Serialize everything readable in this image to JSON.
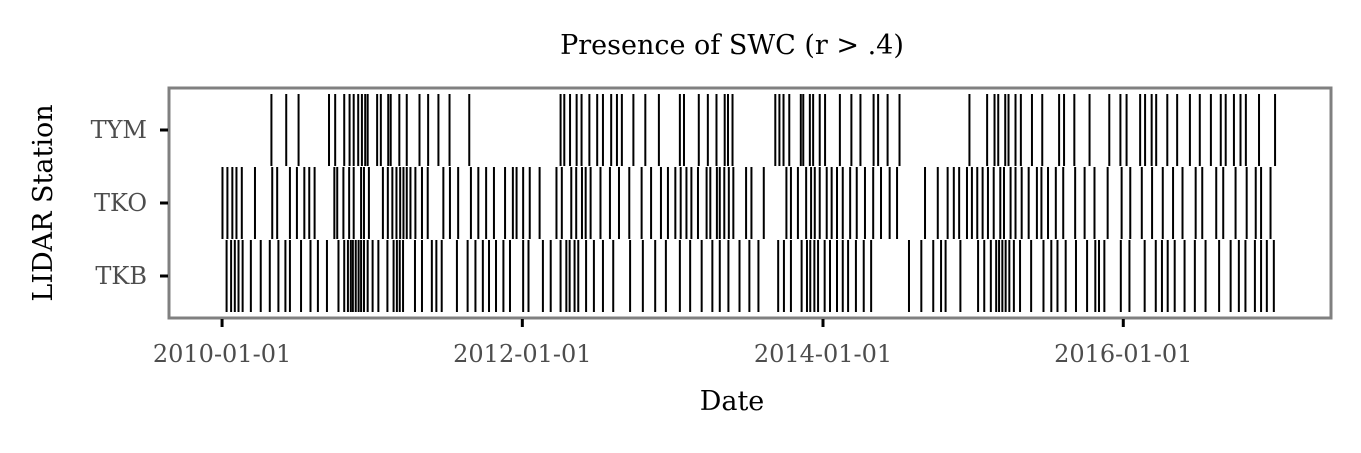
{
  "chart_data": {
    "type": "event-raster",
    "title": "Presence of SWC (r > .4)",
    "xlabel": "Date",
    "ylabel": "LIDAR Station",
    "xlim": [
      "2009-08-25",
      "2017-05-20"
    ],
    "x_ticks": [
      "2010-01-01",
      "2012-01-01",
      "2014-01-01",
      "2016-01-01"
    ],
    "categories": [
      "TKB",
      "TKO",
      "TYM"
    ],
    "grid": false,
    "legend": "none",
    "bar_color": "#000000",
    "frame_color": "#808080",
    "series": [
      {
        "name": "TYM",
        "dates": [
          "2010-05-01",
          "2010-06-06",
          "2010-07-06",
          "2010-09-18",
          "2010-10-03",
          "2010-10-25",
          "2010-11-07",
          "2010-11-17",
          "2010-11-28",
          "2010-12-07",
          "2010-12-15",
          "2010-12-21",
          "2011-01-13",
          "2011-01-22",
          "2011-02-09",
          "2011-02-15",
          "2011-03-08",
          "2011-03-26",
          "2011-04-26",
          "2011-05-17",
          "2011-06-11",
          "2011-07-08",
          "2011-08-25",
          "2012-04-03",
          "2012-04-12",
          "2012-04-26",
          "2012-05-12",
          "2012-05-24",
          "2012-06-12",
          "2012-07-01",
          "2012-07-15",
          "2012-08-04",
          "2012-08-18",
          "2012-08-30",
          "2012-09-27",
          "2012-10-26",
          "2012-11-28",
          "2013-01-18",
          "2013-01-28",
          "2013-03-05",
          "2013-03-27",
          "2013-04-17",
          "2013-05-07",
          "2013-05-15",
          "2013-05-26",
          "2013-09-07",
          "2013-09-17",
          "2013-09-27",
          "2013-10-11",
          "2013-11-08",
          "2013-11-14",
          "2013-11-30",
          "2013-12-08",
          "2013-12-24",
          "2014-01-06",
          "2014-02-11",
          "2014-03-11",
          "2014-04-02",
          "2014-05-04",
          "2014-05-15",
          "2014-06-07",
          "2014-07-06",
          "2014-12-23",
          "2015-02-04",
          "2015-02-22",
          "2015-03-03",
          "2015-03-20",
          "2015-03-28",
          "2015-04-14",
          "2015-04-27",
          "2015-05-24",
          "2015-06-18",
          "2015-07-29",
          "2015-08-10",
          "2015-09-04",
          "2015-10-11",
          "2015-11-28",
          "2015-12-25",
          "2016-01-09",
          "2016-02-11",
          "2016-02-23",
          "2016-03-10",
          "2016-03-21",
          "2016-04-17",
          "2016-05-11",
          "2016-06-11",
          "2016-07-05",
          "2016-08-01",
          "2016-08-25",
          "2016-09-06",
          "2016-09-26",
          "2016-10-12",
          "2016-10-25",
          "2016-11-26",
          "2017-01-04"
        ]
      },
      {
        "name": "TKO",
        "dates": [
          "2010-01-02",
          "2010-01-14",
          "2010-01-26",
          "2010-02-05",
          "2010-02-18",
          "2010-03-22",
          "2010-05-03",
          "2010-05-15",
          "2010-06-15",
          "2010-07-02",
          "2010-07-20",
          "2010-08-01",
          "2010-08-14",
          "2010-10-01",
          "2010-10-08",
          "2010-10-23",
          "2010-11-06",
          "2010-11-17",
          "2010-12-05",
          "2010-12-12",
          "2010-12-24",
          "2011-01-27",
          "2011-02-08",
          "2011-02-19",
          "2011-03-01",
          "2011-03-10",
          "2011-03-18",
          "2011-03-26",
          "2011-04-04",
          "2011-04-16",
          "2011-05-02",
          "2011-05-16",
          "2011-06-23",
          "2011-07-09",
          "2011-07-29",
          "2011-08-29",
          "2011-09-16",
          "2011-10-05",
          "2011-10-24",
          "2011-11-20",
          "2011-12-09",
          "2011-12-18",
          "2012-01-03",
          "2012-01-19",
          "2012-02-12",
          "2012-03-24",
          "2012-04-06",
          "2012-04-29",
          "2012-05-11",
          "2012-05-25",
          "2012-06-03",
          "2012-06-15",
          "2012-07-09",
          "2012-08-01",
          "2012-08-23",
          "2012-09-17",
          "2012-10-17",
          "2012-11-09",
          "2012-12-03",
          "2012-12-20",
          "2013-01-07",
          "2013-01-20",
          "2013-02-03",
          "2013-02-15",
          "2013-03-03",
          "2013-03-24",
          "2013-04-02",
          "2013-04-18",
          "2013-04-25",
          "2013-05-06",
          "2013-05-17",
          "2013-05-28",
          "2013-06-28",
          "2013-07-11",
          "2013-08-10",
          "2013-10-04",
          "2013-10-15",
          "2013-11-01",
          "2013-11-21",
          "2013-12-03",
          "2013-12-12",
          "2013-12-24",
          "2014-01-10",
          "2014-01-22",
          "2014-02-04",
          "2014-02-18",
          "2014-03-08",
          "2014-03-24",
          "2014-04-13",
          "2014-05-03",
          "2014-05-22",
          "2014-06-12",
          "2014-06-30",
          "2014-09-06",
          "2014-10-07",
          "2014-10-31",
          "2014-11-15",
          "2014-11-28",
          "2014-12-17",
          "2014-12-29",
          "2015-01-11",
          "2015-01-24",
          "2015-02-06",
          "2015-02-20",
          "2015-03-08",
          "2015-03-17",
          "2015-04-02",
          "2015-04-14",
          "2015-04-29",
          "2015-05-16",
          "2015-06-05",
          "2015-06-16",
          "2015-07-02",
          "2015-07-21",
          "2015-08-08",
          "2015-09-06",
          "2015-09-29",
          "2015-10-23",
          "2015-11-24",
          "2015-12-28",
          "2016-01-18",
          "2016-02-15",
          "2016-03-11",
          "2016-04-06",
          "2016-05-01",
          "2016-05-24",
          "2016-06-25",
          "2016-07-11",
          "2016-08-14",
          "2016-08-31",
          "2016-09-30",
          "2016-10-27",
          "2016-11-18",
          "2016-12-01",
          "2016-12-24"
        ]
      },
      {
        "name": "TKB",
        "dates": [
          "2010-01-12",
          "2010-01-23",
          "2010-02-01",
          "2010-02-10",
          "2010-02-20",
          "2010-03-12",
          "2010-04-05",
          "2010-04-27",
          "2010-05-18",
          "2010-06-04",
          "2010-06-15",
          "2010-07-12",
          "2010-08-04",
          "2010-08-22",
          "2010-09-13",
          "2010-10-11",
          "2010-10-25",
          "2010-11-03",
          "2010-11-10",
          "2010-11-15",
          "2010-11-22",
          "2010-11-29",
          "2010-12-05",
          "2010-12-12",
          "2010-12-21",
          "2011-01-02",
          "2011-01-16",
          "2011-02-07",
          "2011-02-22",
          "2011-03-02",
          "2011-03-09",
          "2011-03-17",
          "2011-04-15",
          "2011-05-02",
          "2011-05-26",
          "2011-06-06",
          "2011-06-19",
          "2011-07-26",
          "2011-08-21",
          "2011-09-09",
          "2011-09-27",
          "2011-10-12",
          "2011-10-29",
          "2011-11-16",
          "2011-12-02",
          "2012-01-03",
          "2012-01-16",
          "2012-02-20",
          "2012-03-10",
          "2012-04-03",
          "2012-04-17",
          "2012-04-25",
          "2012-05-07",
          "2012-05-16",
          "2012-06-04",
          "2012-06-23",
          "2012-07-15",
          "2012-08-09",
          "2012-09-19",
          "2012-10-20",
          "2012-11-19",
          "2012-12-15",
          "2013-01-18",
          "2013-02-12",
          "2013-03-12",
          "2013-04-07",
          "2013-04-25",
          "2013-05-16",
          "2013-06-12",
          "2013-07-06",
          "2013-07-28",
          "2013-09-14",
          "2013-09-28",
          "2013-10-15",
          "2013-11-10",
          "2013-11-23",
          "2013-12-01",
          "2013-12-11",
          "2013-12-20",
          "2014-01-05",
          "2014-01-18",
          "2014-02-04",
          "2014-02-18",
          "2014-03-03",
          "2014-03-22",
          "2014-04-10",
          "2014-04-28",
          "2014-07-29",
          "2014-08-28",
          "2014-09-26",
          "2014-10-15",
          "2014-10-26",
          "2014-12-01",
          "2015-01-13",
          "2015-01-28",
          "2015-02-13",
          "2015-02-26",
          "2015-03-05",
          "2015-03-13",
          "2015-03-21",
          "2015-03-30",
          "2015-04-10",
          "2015-04-25",
          "2015-05-22",
          "2015-06-21",
          "2015-07-10",
          "2015-07-25",
          "2015-08-14",
          "2015-09-08",
          "2015-10-05",
          "2015-10-25",
          "2015-11-03",
          "2015-11-16",
          "2015-12-26",
          "2016-01-16",
          "2016-02-22",
          "2016-03-20",
          "2016-04-04",
          "2016-04-18",
          "2016-05-05",
          "2016-05-29",
          "2016-06-23",
          "2016-07-19",
          "2016-08-21",
          "2016-09-18",
          "2016-10-08",
          "2016-10-24",
          "2016-11-16",
          "2016-12-01",
          "2016-12-15",
          "2017-01-01"
        ]
      }
    ]
  }
}
